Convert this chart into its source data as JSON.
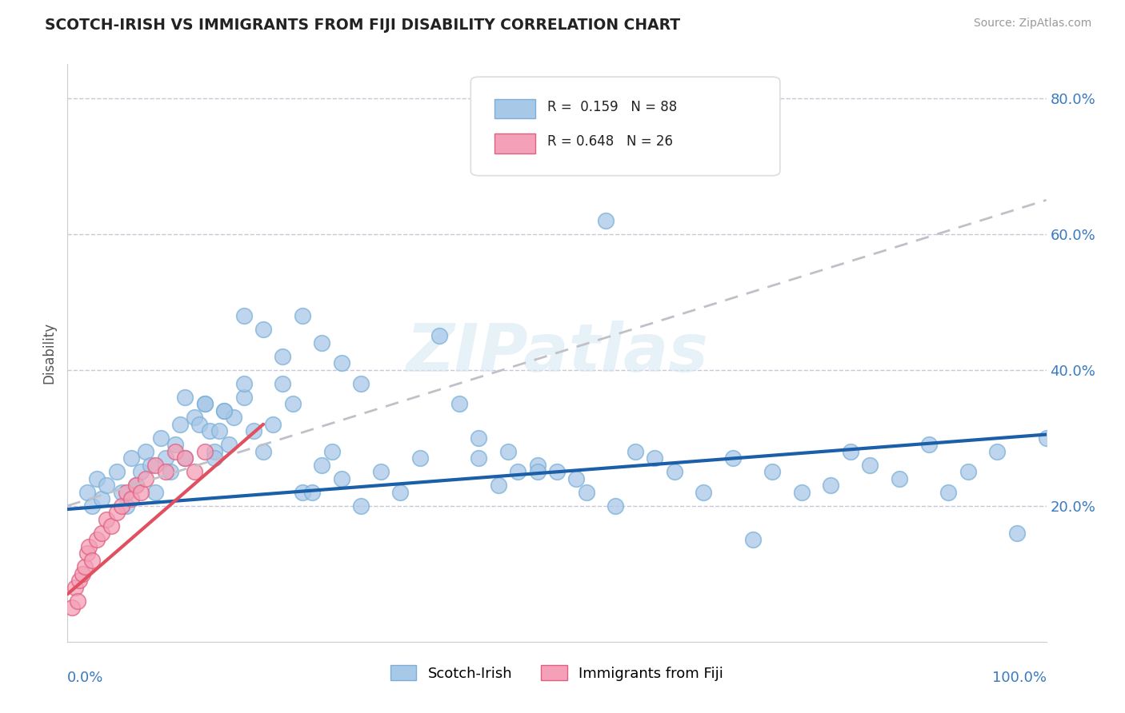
{
  "title": "SCOTCH-IRISH VS IMMIGRANTS FROM FIJI DISABILITY CORRELATION CHART",
  "source": "Source: ZipAtlas.com",
  "ylabel": "Disability",
  "xlim": [
    0,
    1.0
  ],
  "ylim": [
    0.0,
    0.85
  ],
  "yticks": [
    0.2,
    0.4,
    0.6,
    0.8
  ],
  "ytick_labels": [
    "20.0%",
    "40.0%",
    "60.0%",
    "80.0%"
  ],
  "scotch_irish_color_face": "#a8c8e8",
  "scotch_irish_color_edge": "#7ab0d8",
  "fiji_color_face": "#f4a0b8",
  "fiji_color_edge": "#e06080",
  "trend_blue_color": "#1a5fa8",
  "trend_red_color": "#e05060",
  "trend_gray_color": "#c0c0c8",
  "watermark": "ZIPatlas",
  "legend_r1": "R =  0.159   N = 88",
  "legend_r2": "R = 0.648   N = 26",
  "legend_label1": "Scotch-Irish",
  "legend_label2": "Immigrants from Fiji",
  "scotch_irish_x": [
    0.02,
    0.025,
    0.03,
    0.035,
    0.04,
    0.05,
    0.055,
    0.06,
    0.065,
    0.07,
    0.075,
    0.08,
    0.085,
    0.09,
    0.095,
    0.1,
    0.105,
    0.11,
    0.115,
    0.12,
    0.13,
    0.135,
    0.14,
    0.145,
    0.15,
    0.155,
    0.16,
    0.165,
    0.17,
    0.18,
    0.19,
    0.2,
    0.21,
    0.22,
    0.23,
    0.24,
    0.25,
    0.26,
    0.27,
    0.28,
    0.3,
    0.32,
    0.34,
    0.36,
    0.38,
    0.4,
    0.42,
    0.45,
    0.48,
    0.5,
    0.53,
    0.55,
    0.58,
    0.6,
    0.62,
    0.65,
    0.68,
    0.7,
    0.72,
    0.75,
    0.78,
    0.8,
    0.82,
    0.85,
    0.88,
    0.9,
    0.92,
    0.95,
    0.97,
    1.0,
    0.15,
    0.18,
    0.2,
    0.22,
    0.24,
    0.26,
    0.28,
    0.3,
    0.12,
    0.14,
    0.16,
    0.18,
    0.46,
    0.42,
    0.44,
    0.48,
    0.52,
    0.56
  ],
  "scotch_irish_y": [
    0.22,
    0.2,
    0.24,
    0.21,
    0.23,
    0.25,
    0.22,
    0.2,
    0.27,
    0.23,
    0.25,
    0.28,
    0.26,
    0.22,
    0.3,
    0.27,
    0.25,
    0.29,
    0.32,
    0.27,
    0.33,
    0.32,
    0.35,
    0.31,
    0.28,
    0.31,
    0.34,
    0.29,
    0.33,
    0.36,
    0.31,
    0.28,
    0.32,
    0.38,
    0.35,
    0.22,
    0.22,
    0.26,
    0.28,
    0.24,
    0.2,
    0.25,
    0.22,
    0.27,
    0.45,
    0.35,
    0.3,
    0.28,
    0.26,
    0.25,
    0.22,
    0.62,
    0.28,
    0.27,
    0.25,
    0.22,
    0.27,
    0.15,
    0.25,
    0.22,
    0.23,
    0.28,
    0.26,
    0.24,
    0.29,
    0.22,
    0.25,
    0.28,
    0.16,
    0.3,
    0.27,
    0.48,
    0.46,
    0.42,
    0.48,
    0.44,
    0.41,
    0.38,
    0.36,
    0.35,
    0.34,
    0.38,
    0.25,
    0.27,
    0.23,
    0.25,
    0.24,
    0.2
  ],
  "fiji_x": [
    0.005,
    0.008,
    0.01,
    0.012,
    0.015,
    0.018,
    0.02,
    0.022,
    0.025,
    0.03,
    0.035,
    0.04,
    0.045,
    0.05,
    0.055,
    0.06,
    0.065,
    0.07,
    0.075,
    0.08,
    0.09,
    0.1,
    0.11,
    0.12,
    0.13,
    0.14
  ],
  "fiji_y": [
    0.05,
    0.08,
    0.06,
    0.09,
    0.1,
    0.11,
    0.13,
    0.14,
    0.12,
    0.15,
    0.16,
    0.18,
    0.17,
    0.19,
    0.2,
    0.22,
    0.21,
    0.23,
    0.22,
    0.24,
    0.26,
    0.25,
    0.28,
    0.27,
    0.25,
    0.28
  ],
  "blue_trend_x0": 0.0,
  "blue_trend_y0": 0.195,
  "blue_trend_x1": 1.0,
  "blue_trend_y1": 0.305,
  "red_trend_x0": 0.0,
  "red_trend_y0": 0.07,
  "red_trend_x1": 0.2,
  "red_trend_y1": 0.32,
  "gray_trend_x0": 0.0,
  "gray_trend_y0": 0.2,
  "gray_trend_x1": 1.0,
  "gray_trend_y1": 0.65
}
